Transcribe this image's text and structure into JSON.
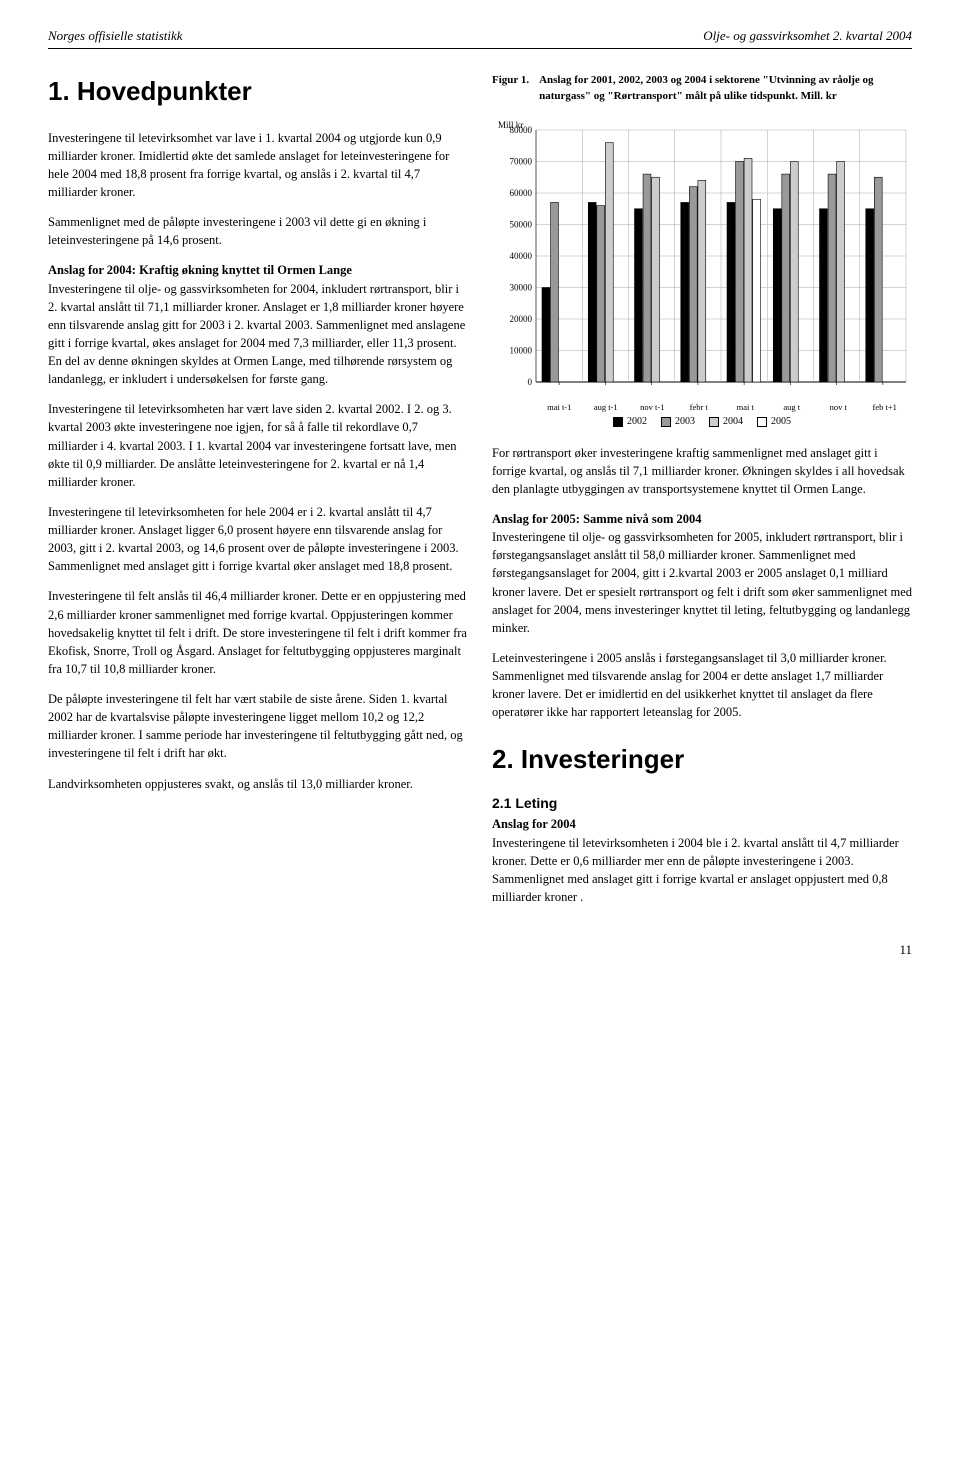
{
  "header": {
    "left": "Norges offisielle statistikk",
    "right": "Olje- og gassvirksomhet 2. kvartal 2004"
  },
  "h1": "1. Hovedpunkter",
  "left": {
    "p1": "Investeringene til letevirksomhet var lave i 1. kvartal 2004 og utgjorde kun 0,9 milliarder kroner. Imidlertid økte det samlede anslaget for leteinvesteringene for hele 2004 med 18,8 prosent fra forrige kvartal, og anslås i 2. kvartal til 4,7 milliarder kroner.",
    "p2": "Sammenlignet med de påløpte investeringene i 2003 vil dette gi en økning i leteinvesteringene på 14,6 prosent.",
    "sub1": "Anslag for 2004: Kraftig økning knyttet til Ormen Lange",
    "p3": "Investeringene til olje- og gassvirksomheten for 2004, inkludert rørtransport, blir i 2. kvartal anslått til 71,1 milliarder kroner. Anslaget er 1,8 milliarder kroner høyere enn tilsvarende anslag gitt for 2003 i 2. kvartal 2003. Sammenlignet med anslagene gitt i forrige kvartal, økes anslaget for 2004 med 7,3 milliarder, eller 11,3 prosent. En del av denne økningen skyldes at Ormen Lange, med tilhørende rørsystem og landanlegg, er inkludert i undersøkelsen for første gang.",
    "p4": "Investeringene til letevirksomheten har vært lave siden 2. kvartal 2002. I 2. og 3. kvartal 2003 økte investeringene noe igjen, for så å falle til rekordlave 0,7 milliarder i 4. kvartal 2003. I 1. kvartal 2004 var investeringene fortsatt lave, men økte til 0,9 milliarder. De anslåtte leteinvesteringene for 2. kvartal er nå 1,4 milliarder kroner.",
    "p5": "Investeringene til letevirksomheten for hele 2004 er i 2. kvartal anslått til 4,7 milliarder kroner. Anslaget ligger 6,0 prosent høyere enn tilsvarende anslag for 2003, gitt i 2. kvartal 2003, og 14,6 prosent over de påløpte investeringene i 2003. Sammenlignet med anslaget gitt i forrige kvartal øker anslaget med 18,8 prosent.",
    "p6": "Investeringene til felt anslås til 46,4 milliarder kroner. Dette er en oppjustering med 2,6 milliarder kroner sammenlignet med forrige kvartal. Oppjusteringen kommer hovedsakelig knyttet til felt i drift. De store investeringene til felt i drift kommer fra Ekofisk, Snorre, Troll og Åsgard. Anslaget for feltutbygging oppjusteres marginalt fra 10,7 til 10,8 milliarder kroner.",
    "p7": "De påløpte investeringene til felt har vært stabile de siste årene. Siden 1. kvartal 2002 har de kvartalsvise påløpte investeringene ligget mellom 10,2 og 12,2 milliarder kroner. I samme periode har investeringene til feltutbygging gått ned, og investeringene til felt i drift har økt.",
    "p8": "Landvirksomheten oppjusteres svakt, og anslås til 13,0 milliarder kroner."
  },
  "figure": {
    "label": "Figur 1.",
    "title": "Anslag for 2001, 2002, 2003 og 2004 i sektorene \"Utvinning av råolje og naturgass\" og \"Rørtransport\" målt på ulike tidspunkt. Mill. kr",
    "yaxis_label": "Mill kr",
    "ylim": [
      0,
      80000
    ],
    "ytick_step": 10000,
    "yticks": [
      "0",
      "10000",
      "20000",
      "30000",
      "40000",
      "50000",
      "60000",
      "70000",
      "80000"
    ],
    "categories": [
      "mai t-1",
      "aug t-1",
      "nov t-1",
      "febr t",
      "mai t",
      "aug t",
      "nov t",
      "feb t+1"
    ],
    "series": [
      {
        "name": "2002",
        "color": "#000000",
        "values": [
          30000,
          57000,
          55000,
          57000,
          57000,
          55000,
          55000,
          55000
        ]
      },
      {
        "name": "2003",
        "color": "#999999",
        "values": [
          57000,
          56000,
          66000,
          62000,
          70000,
          66000,
          66000,
          65000
        ]
      },
      {
        "name": "2004",
        "color": "#cccccc",
        "values": [
          null,
          76000,
          65000,
          64000,
          71000,
          70000,
          70000,
          null
        ]
      },
      {
        "name": "2005",
        "color": "#ffffff",
        "values": [
          null,
          null,
          null,
          null,
          58000,
          null,
          null,
          null
        ]
      }
    ],
    "grid_color": "#aaaaaa",
    "background_color": "#ffffff",
    "axis_fontsize": 9,
    "bar_group_gap": 0.26
  },
  "right": {
    "p1": "For rørtransport øker investeringene kraftig sammenlignet med anslaget gitt i forrige kvartal, og anslås til 7,1 milliarder kroner. Økningen skyldes i all hovedsak den planlagte utbyggingen av transportsystemene knyttet til Ormen Lange.",
    "sub1": "Anslag for 2005: Samme nivå som 2004",
    "p2": "Investeringene til olje- og gassvirksomheten for 2005, inkludert rørtransport, blir i førstegangsanslaget anslått til 58,0 milliarder kroner. Sammenlignet med førstegangsanslaget for 2004, gitt i 2.kvartal 2003 er 2005 anslaget 0,1 milliard kroner lavere. Det er spesielt rørtransport og felt i drift som øker sammenlignet med anslaget for 2004, mens investeringer knyttet til leting, feltutbygging og landanlegg minker.",
    "p3": "Leteinvesteringene i 2005 anslås i førstegangsanslaget til 3,0 milliarder kroner. Sammenlignet med tilsvarende anslag for 2004 er dette anslaget 1,7 milliarder kroner lavere. Det er imidlertid en del usikkerhet knyttet til anslaget da flere operatører ikke har rapportert leteanslag for 2005.",
    "h2": "2. Investeringer",
    "subsec": "2.1 Leting",
    "sub2": "Anslag for 2004",
    "p4": "Investeringene til letevirksomheten i 2004 ble i 2. kvartal anslått til 4,7 milliarder kroner. Dette er 0,6 milliarder mer enn de påløpte investeringene i 2003. Sammenlignet med anslaget gitt i forrige kvartal er anslaget oppjustert med 0,8 milliarder kroner ."
  },
  "page_number": "11"
}
